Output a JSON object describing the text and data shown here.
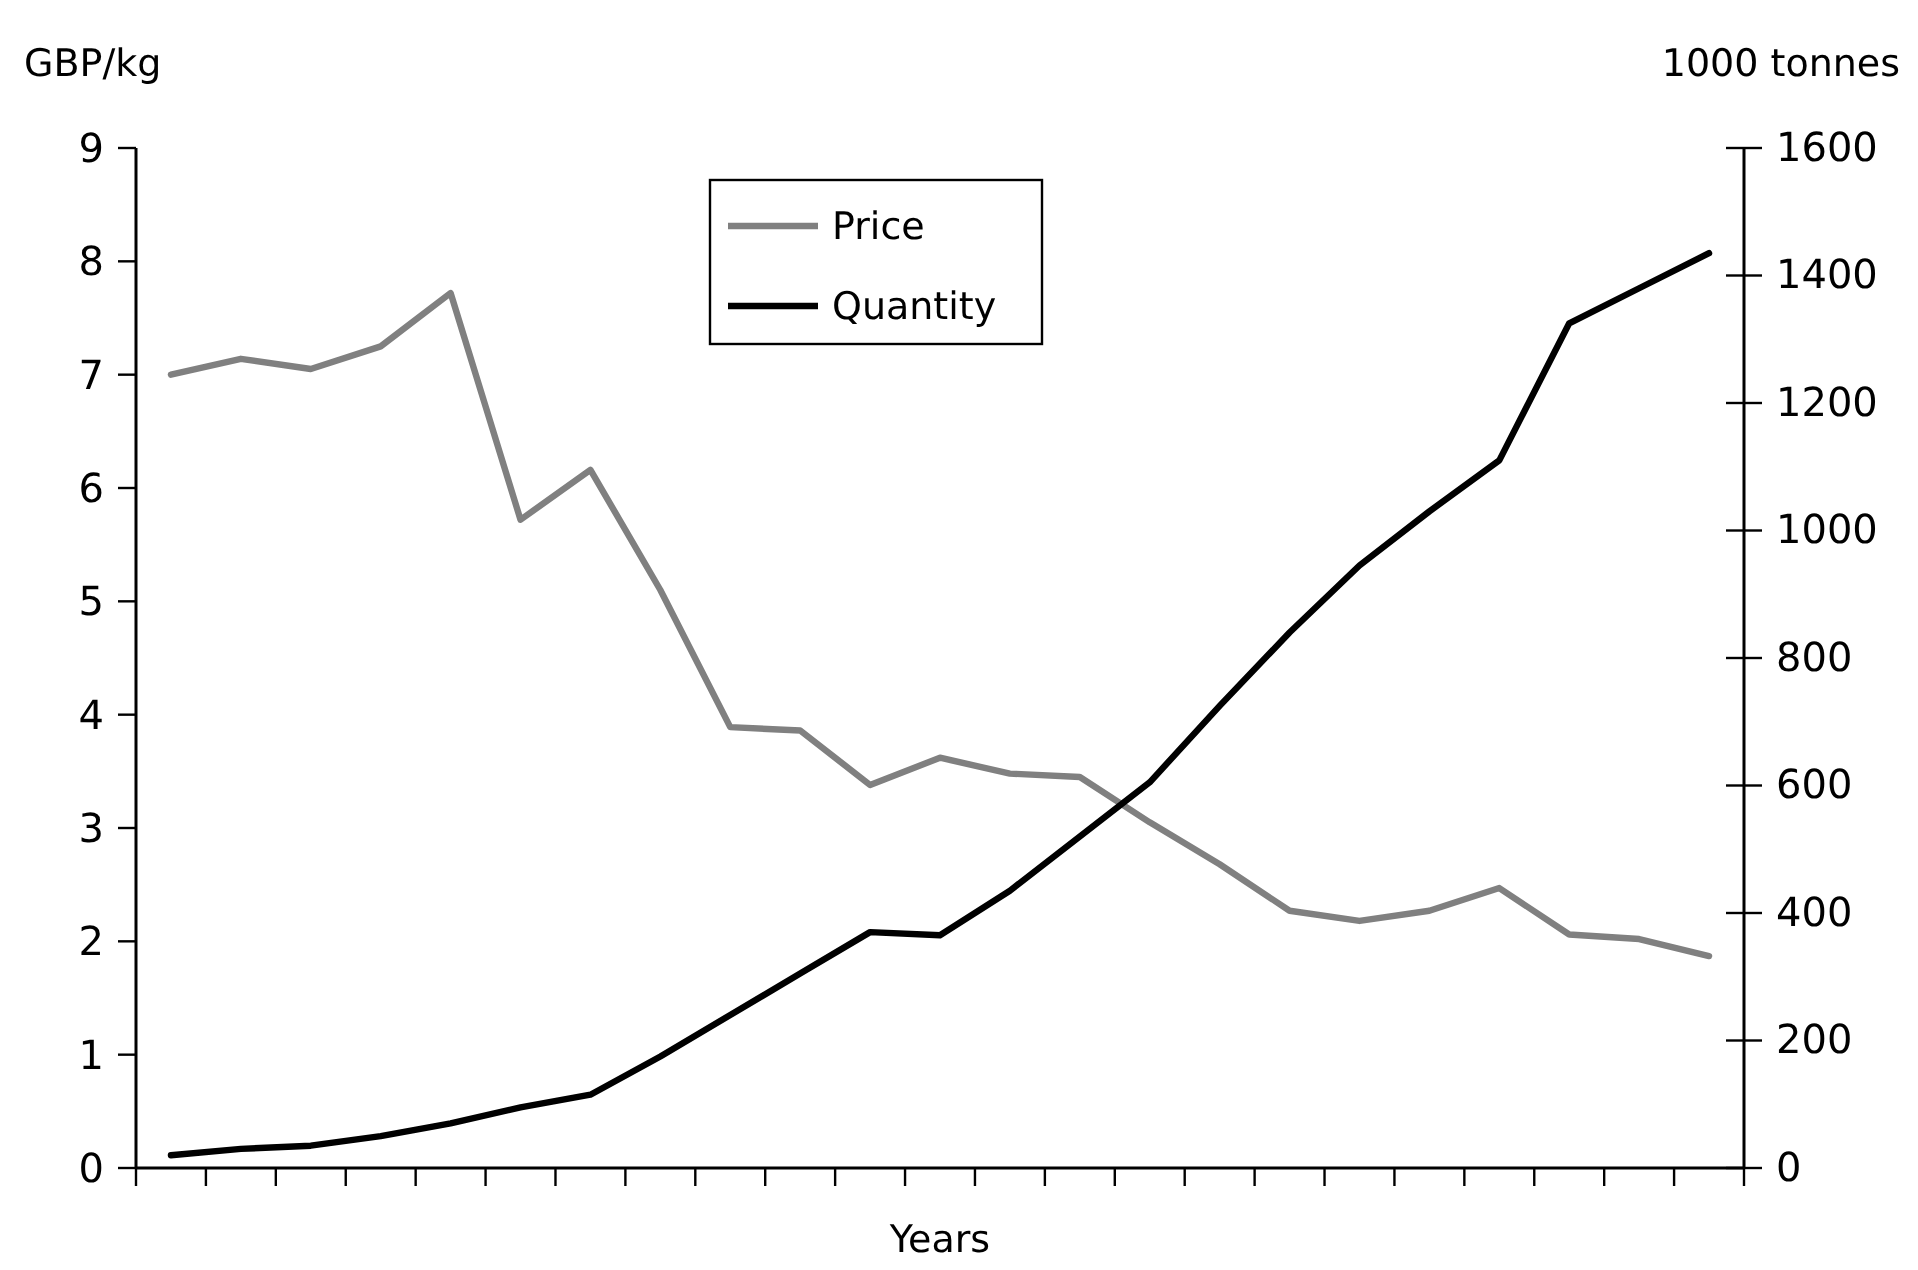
{
  "chart_data": {
    "type": "line",
    "xlabel": "Years",
    "ylabel": "GBP/kg",
    "y2label": "1000 tonnes",
    "categories": [
      null,
      null,
      null,
      null,
      null,
      null,
      null,
      null,
      null,
      null,
      null,
      null,
      null,
      null,
      null,
      null,
      null,
      null,
      null,
      null,
      null,
      null,
      null
    ],
    "series": [
      {
        "name": "Price",
        "color": "#808080",
        "values": [
          7.0,
          7.14,
          7.05,
          7.25,
          7.72,
          5.72,
          6.16,
          5.1,
          3.89,
          3.86,
          3.38,
          3.62,
          3.48,
          3.45,
          3.05,
          2.68,
          2.27,
          2.18,
          2.27,
          2.47,
          2.06,
          2.02,
          1.87
        ]
      },
      {
        "name": "Quantity",
        "color": "#000000",
        "axis": "y2",
        "values": [
          20,
          30,
          35,
          50,
          70,
          95,
          115,
          175,
          240,
          305,
          370,
          365,
          435,
          520,
          605,
          725,
          840,
          945,
          1030,
          1110,
          1325,
          1380,
          1435
        ]
      }
    ],
    "ylim": [
      0,
      9
    ],
    "yticks": [
      0,
      1,
      2,
      3,
      4,
      5,
      6,
      7,
      8,
      9
    ],
    "y2lim": [
      0,
      1600
    ],
    "y2ticks": [
      0,
      200,
      400,
      600,
      800,
      1000,
      1200,
      1400,
      1600
    ],
    "legend": "top",
    "line_style": "solid",
    "marker": "none",
    "grid": false
  }
}
